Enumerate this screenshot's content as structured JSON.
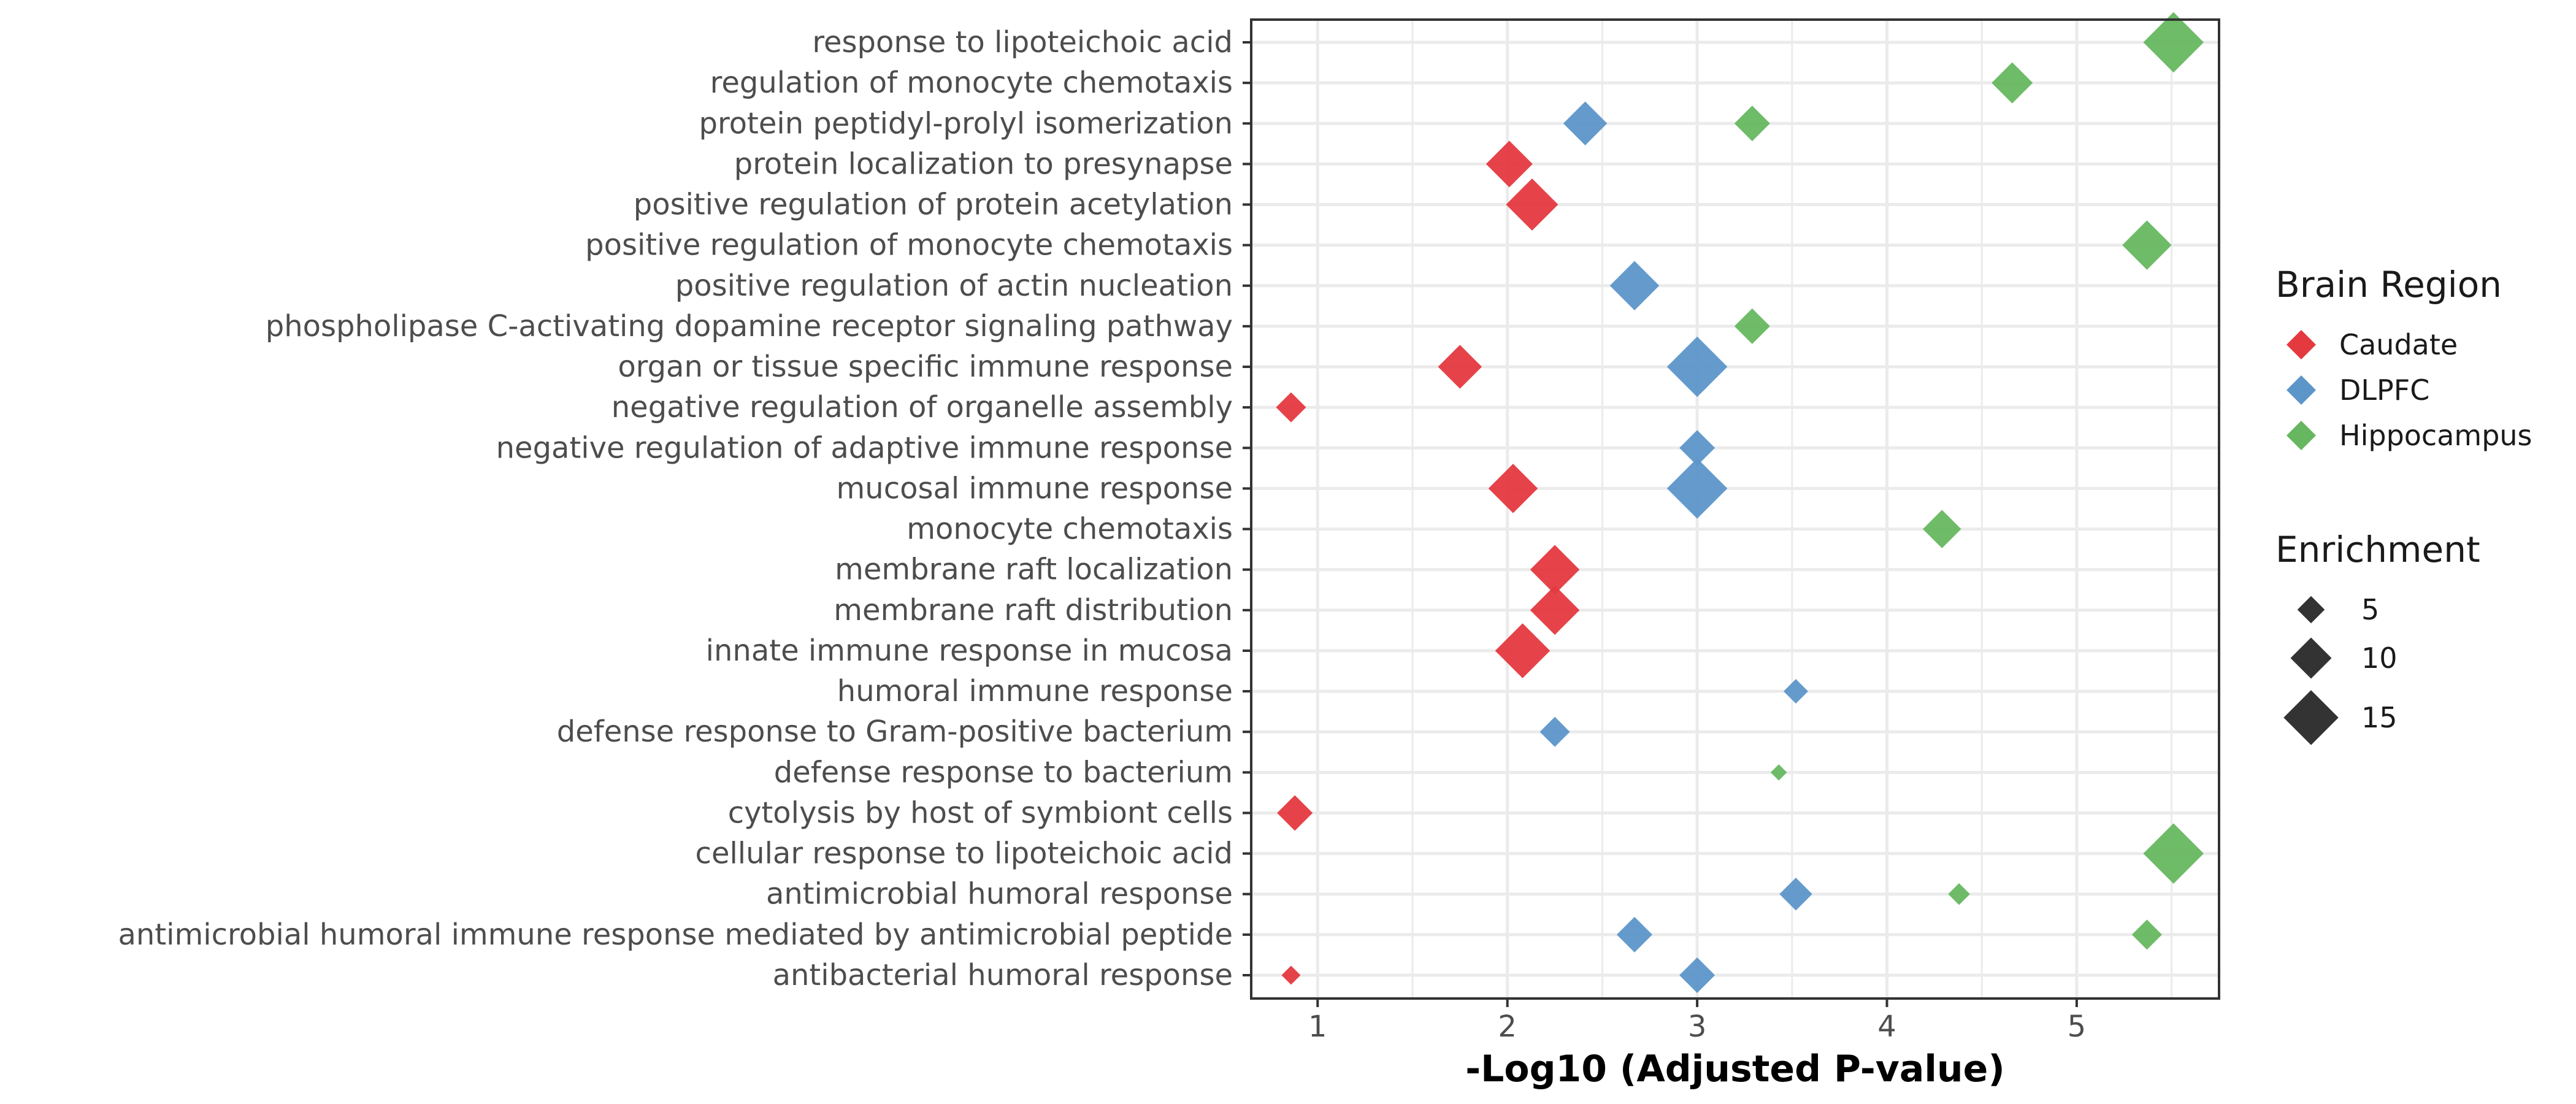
{
  "chart_data": {
    "type": "scatter",
    "title": "",
    "xlabel": "-Log10 (Adjusted P-value)",
    "ylabel": "",
    "xlim": [
      0.65,
      5.75
    ],
    "xticks": [
      1,
      2,
      3,
      4,
      5
    ],
    "grid": true,
    "marker": "diamond",
    "categories": [
      "response to lipoteichoic acid",
      "regulation of monocyte chemotaxis",
      "protein peptidyl-prolyl isomerization",
      "protein localization to presynapse",
      "positive regulation of protein acetylation",
      "positive regulation of monocyte chemotaxis",
      "positive regulation of actin nucleation",
      "phospholipase C-activating dopamine receptor signaling pathway",
      "organ or tissue specific immune response",
      "negative regulation of organelle assembly",
      "negative regulation of adaptive immune response",
      "mucosal immune response",
      "monocyte chemotaxis",
      "membrane raft localization",
      "membrane raft distribution",
      "innate immune response in mucosa",
      "humoral immune response",
      "defense response to Gram-positive bacterium",
      "defense response to bacterium",
      "cytolysis by host of symbiont cells",
      "cellular response to lipoteichoic acid",
      "antimicrobial humoral response",
      "antimicrobial humoral immune response mediated by antimicrobial peptide",
      "antibacterial humoral response"
    ],
    "series": [
      {
        "name": "Caudate",
        "color": "#e4393f",
        "points": [
          {
            "category": "protein localization to presynapse",
            "x": 2.01,
            "enrichment": 12
          },
          {
            "category": "positive regulation of protein acetylation",
            "x": 2.13,
            "enrichment": 14
          },
          {
            "category": "organ or tissue specific immune response",
            "x": 1.75,
            "enrichment": 11
          },
          {
            "category": "negative regulation of organelle assembly",
            "x": 0.86,
            "enrichment": 6
          },
          {
            "category": "mucosal immune response",
            "x": 2.03,
            "enrichment": 13
          },
          {
            "category": "membrane raft localization",
            "x": 2.25,
            "enrichment": 13
          },
          {
            "category": "membrane raft distribution",
            "x": 2.25,
            "enrichment": 13
          },
          {
            "category": "innate immune response in mucosa",
            "x": 2.08,
            "enrichment": 15
          },
          {
            "category": "cytolysis by host of symbiont cells",
            "x": 0.88,
            "enrichment": 8
          },
          {
            "category": "antibacterial humoral response",
            "x": 0.86,
            "enrichment": 2
          }
        ]
      },
      {
        "name": "DLPFC",
        "color": "#5c96c9",
        "points": [
          {
            "category": "protein peptidyl-prolyl isomerization",
            "x": 2.41,
            "enrichment": 11
          },
          {
            "category": "positive regulation of actin nucleation",
            "x": 2.67,
            "enrichment": 13
          },
          {
            "category": "organ or tissue specific immune response",
            "x": 3.0,
            "enrichment": 17
          },
          {
            "category": "negative regulation of adaptive immune response",
            "x": 3.0,
            "enrichment": 8
          },
          {
            "category": "mucosal immune response",
            "x": 3.0,
            "enrichment": 17
          },
          {
            "category": "humoral immune response",
            "x": 3.52,
            "enrichment": 4
          },
          {
            "category": "defense response to Gram-positive bacterium",
            "x": 2.25,
            "enrichment": 6
          },
          {
            "category": "antimicrobial humoral response",
            "x": 3.52,
            "enrichment": 7
          },
          {
            "category": "antimicrobial humoral immune response mediated by antimicrobial peptide",
            "x": 2.67,
            "enrichment": 8
          },
          {
            "category": "antibacterial humoral response",
            "x": 3.0,
            "enrichment": 8
          }
        ]
      },
      {
        "name": "Hippocampus",
        "color": "#66b760",
        "points": [
          {
            "category": "response to lipoteichoic acid",
            "x": 5.51,
            "enrichment": 17
          },
          {
            "category": "regulation of monocyte chemotaxis",
            "x": 4.66,
            "enrichment": 10
          },
          {
            "category": "protein peptidyl-prolyl isomerization",
            "x": 3.29,
            "enrichment": 8
          },
          {
            "category": "positive regulation of monocyte chemotaxis",
            "x": 5.37,
            "enrichment": 13
          },
          {
            "category": "phospholipase C-activating dopamine receptor signaling pathway",
            "x": 3.29,
            "enrichment": 8
          },
          {
            "category": "monocyte chemotaxis",
            "x": 4.29,
            "enrichment": 9
          },
          {
            "category": "defense response to bacterium",
            "x": 3.43,
            "enrichment": 1
          },
          {
            "category": "cellular response to lipoteichoic acid",
            "x": 5.51,
            "enrichment": 17
          },
          {
            "category": "antimicrobial humoral response",
            "x": 4.38,
            "enrichment": 3
          },
          {
            "category": "antimicrobial humoral immune response mediated by antimicrobial peptide",
            "x": 5.37,
            "enrichment": 6
          }
        ]
      }
    ],
    "legend": {
      "placement": "right",
      "color_title": "Brain Region",
      "color_entries": [
        "Caudate",
        "DLPFC",
        "Hippocampus"
      ],
      "size_title": "Enrichment",
      "size_entries": [
        5,
        10,
        15
      ]
    }
  }
}
